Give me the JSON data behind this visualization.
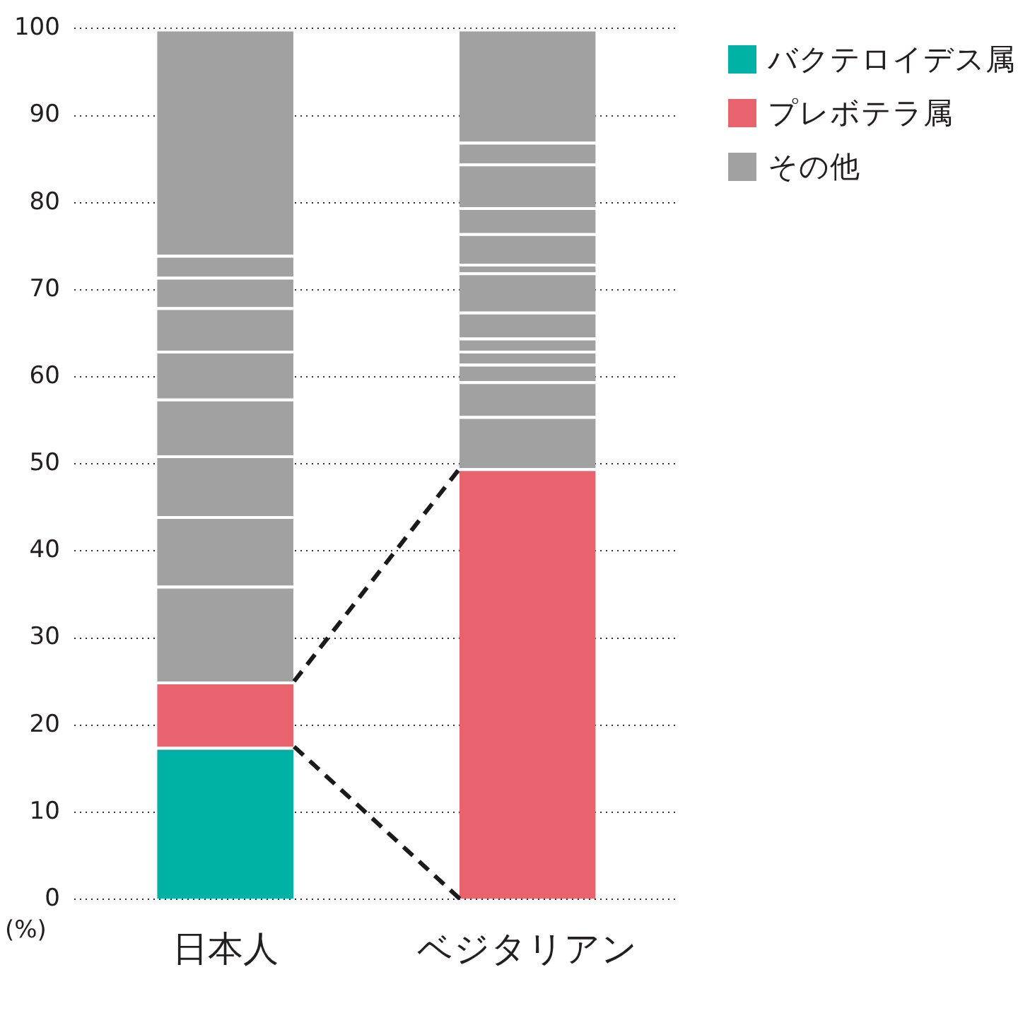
{
  "chart_data": {
    "type": "bar",
    "stacked": true,
    "ylabel": "(%)",
    "categories": [
      "日本人",
      "ベジタリアン"
    ],
    "series": [
      {
        "name": "バクテロイデス属",
        "color": "#00b2a6",
        "values": [
          17.5,
          null
        ]
      },
      {
        "name": "プレボテラ属",
        "color": "#e9636f",
        "values": [
          7.5,
          49.5
        ]
      },
      {
        "name": "その他",
        "color": "#a0a1a0",
        "values": [
          11,
          6
        ]
      },
      {
        "color": "#a0a1a0",
        "values": [
          8,
          4
        ]
      },
      {
        "color": "#a0a1a0",
        "values": [
          7,
          2
        ]
      },
      {
        "color": "#a0a1a0",
        "values": [
          6.5,
          1.5
        ]
      },
      {
        "color": "#a0a1a0",
        "values": [
          5.5,
          1.5
        ]
      },
      {
        "color": "#a0a1a0",
        "values": [
          5,
          3
        ]
      },
      {
        "color": "#a0a1a0",
        "values": [
          3.5,
          4.5
        ]
      },
      {
        "color": "#a0a1a0",
        "values": [
          2.5,
          1
        ]
      },
      {
        "color": "#a0a1a0",
        "values": [
          26,
          3.5
        ]
      },
      {
        "color": "#a0a1a0",
        "values": [
          null,
          3
        ]
      },
      {
        "color": "#a0a1a0",
        "values": [
          null,
          5
        ]
      },
      {
        "color": "#a0a1a0",
        "values": [
          null,
          2.5
        ]
      },
      {
        "color": "#a0a1a0",
        "values": [
          null,
          13
        ]
      }
    ],
    "ylim": [
      0,
      100
    ],
    "yticks": [
      0,
      10,
      20,
      30,
      40,
      50,
      60,
      70,
      80,
      90,
      100
    ],
    "grid": "y",
    "legend": "top right"
  }
}
